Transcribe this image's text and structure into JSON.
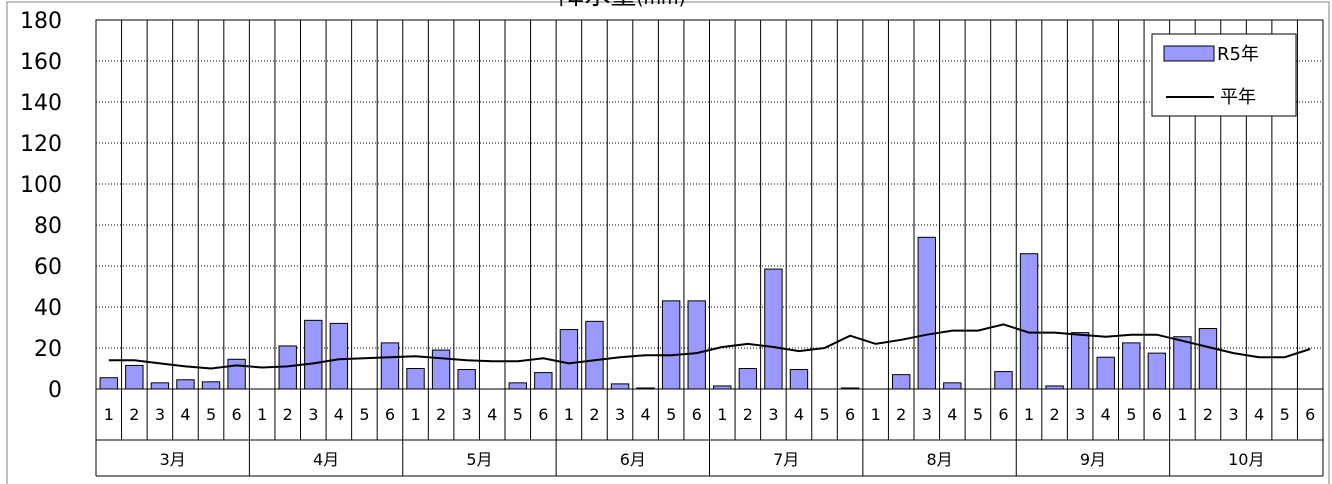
{
  "chart_data": {
    "type": "bar",
    "title": "降水量",
    "title_unit": "(mm)",
    "ylim": [
      0,
      180
    ],
    "y_ticks": [
      "0",
      "20",
      "40",
      "60",
      "80",
      "100",
      "120",
      "140",
      "160",
      "180"
    ],
    "grid": true,
    "legend_position": "top-right",
    "sub_categories": [
      "1",
      "2",
      "3",
      "4",
      "5",
      "6",
      "1",
      "2",
      "3",
      "4",
      "5",
      "6",
      "1",
      "2",
      "3",
      "4",
      "5",
      "6",
      "1",
      "2",
      "3",
      "4",
      "5",
      "6",
      "1",
      "2",
      "3",
      "4",
      "5",
      "6",
      "1",
      "2",
      "3",
      "4",
      "5",
      "6",
      "1",
      "2",
      "3",
      "4",
      "5",
      "6",
      "1",
      "2",
      "3",
      "4",
      "5",
      "6"
    ],
    "month_groups": [
      "3月",
      "4月",
      "5月",
      "6月",
      "7月",
      "8月",
      "9月",
      "10月"
    ],
    "series": [
      {
        "name": "R5年",
        "kind": "bar",
        "color": "#9999ff",
        "values": [
          5.5,
          11.5,
          3,
          4.5,
          3.5,
          14.5,
          0,
          21,
          33.5,
          32,
          0,
          22.5,
          10,
          19,
          9.5,
          0,
          3,
          8,
          29,
          33,
          2.5,
          0.5,
          43,
          43,
          1.5,
          10,
          58.5,
          9.5,
          0,
          0.5,
          0,
          7,
          74,
          3,
          0,
          8.5,
          66,
          1.5,
          27.5,
          15.5,
          22.5,
          17.5,
          25.5,
          29.5,
          0,
          0,
          0,
          0
        ]
      },
      {
        "name": "平年",
        "kind": "line",
        "color": "#000000",
        "values": [
          14,
          14,
          12.5,
          11,
          10,
          11.5,
          10.5,
          11,
          12.5,
          14.5,
          15,
          15.5,
          16,
          15,
          14,
          13.5,
          13.5,
          15,
          12.5,
          14,
          15.5,
          16.5,
          16.5,
          17.5,
          20.5,
          22,
          20.5,
          18.5,
          20,
          26,
          22,
          24,
          26.5,
          28.5,
          28.5,
          31.5,
          27.5,
          27.5,
          26.5,
          25.5,
          26.5,
          26.5,
          23.5,
          20.5,
          17.5,
          15.5,
          15.5,
          19.5
        ]
      }
    ]
  }
}
